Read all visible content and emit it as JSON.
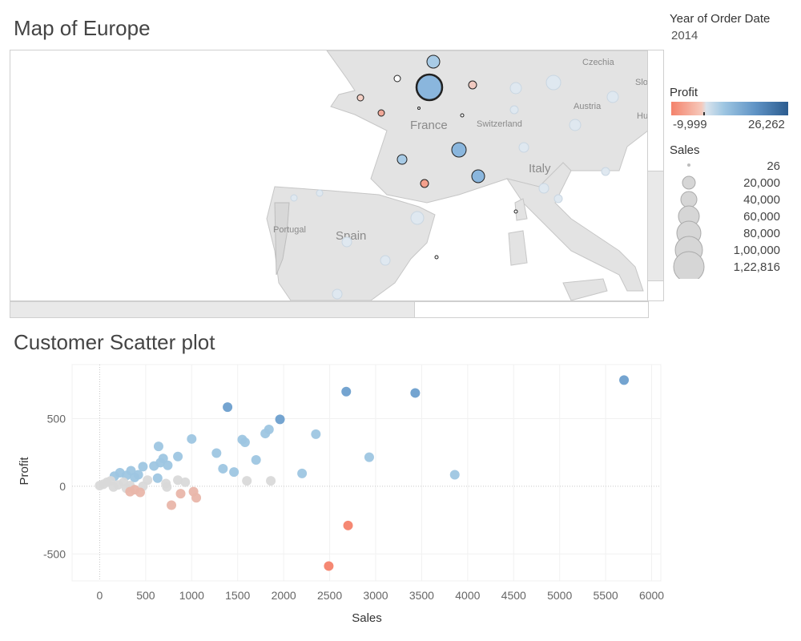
{
  "map": {
    "title": "Map of Europe",
    "labels": [
      {
        "text": "Czechia",
        "size": "small"
      },
      {
        "text": "Austria",
        "size": "small"
      },
      {
        "text": "France",
        "size": "large"
      },
      {
        "text": "Switzerland",
        "size": "small"
      },
      {
        "text": "Italy",
        "size": "large"
      },
      {
        "text": "Spain",
        "size": "large"
      },
      {
        "text": "Portugal",
        "size": "small"
      },
      {
        "text": "Slo",
        "size": "small"
      },
      {
        "text": "Hu",
        "size": "small"
      }
    ]
  },
  "legend": {
    "year_title": "Year of Order Date",
    "year_value": "2014",
    "profit_title": "Profit",
    "profit_min": "-9,999",
    "profit_max": "26,262",
    "sales_title": "Sales",
    "sales_items": [
      "26",
      "20,000",
      "40,000",
      "60,000",
      "80,000",
      "1,00,000",
      "1,22,816"
    ]
  },
  "scatter": {
    "title": "Customer Scatter plot"
  },
  "chart_data": {
    "type": "scatter",
    "title": "Customer Scatter plot",
    "xlabel": "Sales",
    "ylabel": "Profit",
    "xlim": [
      -300,
      6100
    ],
    "ylim": [
      -700,
      900
    ],
    "x_ticks": [
      "0",
      "500",
      "1000",
      "1500",
      "2000",
      "2500",
      "3000",
      "3500",
      "4000",
      "4500",
      "5000",
      "5500",
      "6000"
    ],
    "y_ticks": [
      "500",
      "0",
      "-500"
    ],
    "colors": {
      "negative": "#f4826b",
      "neutral": "#d9d9d9",
      "positive": "#9ec6e2",
      "strong": "#6d9fcd"
    },
    "points": [
      {
        "x": 5700,
        "y": 785
      },
      {
        "x": 2680,
        "y": 700
      },
      {
        "x": 3430,
        "y": 690
      },
      {
        "x": 1390,
        "y": 585
      },
      {
        "x": 1960,
        "y": 495
      },
      {
        "x": 1840,
        "y": 420
      },
      {
        "x": 1800,
        "y": 390
      },
      {
        "x": 2350,
        "y": 385
      },
      {
        "x": 1000,
        "y": 350
      },
      {
        "x": 1550,
        "y": 345
      },
      {
        "x": 1580,
        "y": 325
      },
      {
        "x": 640,
        "y": 295
      },
      {
        "x": 1270,
        "y": 245
      },
      {
        "x": 850,
        "y": 220
      },
      {
        "x": 2930,
        "y": 215
      },
      {
        "x": 690,
        "y": 205
      },
      {
        "x": 1700,
        "y": 195
      },
      {
        "x": 660,
        "y": 175
      },
      {
        "x": 740,
        "y": 155
      },
      {
        "x": 470,
        "y": 145
      },
      {
        "x": 590,
        "y": 150
      },
      {
        "x": 1340,
        "y": 130
      },
      {
        "x": 340,
        "y": 115
      },
      {
        "x": 1460,
        "y": 105
      },
      {
        "x": 220,
        "y": 100
      },
      {
        "x": 2200,
        "y": 95
      },
      {
        "x": 3860,
        "y": 85
      },
      {
        "x": 420,
        "y": 85
      },
      {
        "x": 290,
        "y": 80
      },
      {
        "x": 160,
        "y": 75
      },
      {
        "x": 630,
        "y": 60
      },
      {
        "x": 380,
        "y": 65
      },
      {
        "x": 520,
        "y": 45
      },
      {
        "x": 850,
        "y": 45
      },
      {
        "x": 1600,
        "y": 40
      },
      {
        "x": 1860,
        "y": 40
      },
      {
        "x": 120,
        "y": 40
      },
      {
        "x": 80,
        "y": 30
      },
      {
        "x": 260,
        "y": 30
      },
      {
        "x": 930,
        "y": 30
      },
      {
        "x": 720,
        "y": 20
      },
      {
        "x": 40,
        "y": 15
      },
      {
        "x": 200,
        "y": 10
      },
      {
        "x": 0,
        "y": 5
      },
      {
        "x": 330,
        "y": 5
      },
      {
        "x": 470,
        "y": 0
      },
      {
        "x": 150,
        "y": -5
      },
      {
        "x": 730,
        "y": -5
      },
      {
        "x": 290,
        "y": -15
      },
      {
        "x": 380,
        "y": -25
      },
      {
        "x": 1020,
        "y": -40
      },
      {
        "x": 330,
        "y": -40
      },
      {
        "x": 440,
        "y": -45
      },
      {
        "x": 880,
        "y": -55
      },
      {
        "x": 1050,
        "y": -85
      },
      {
        "x": 780,
        "y": -140
      },
      {
        "x": 2700,
        "y": -290
      },
      {
        "x": 2490,
        "y": -590
      }
    ]
  }
}
